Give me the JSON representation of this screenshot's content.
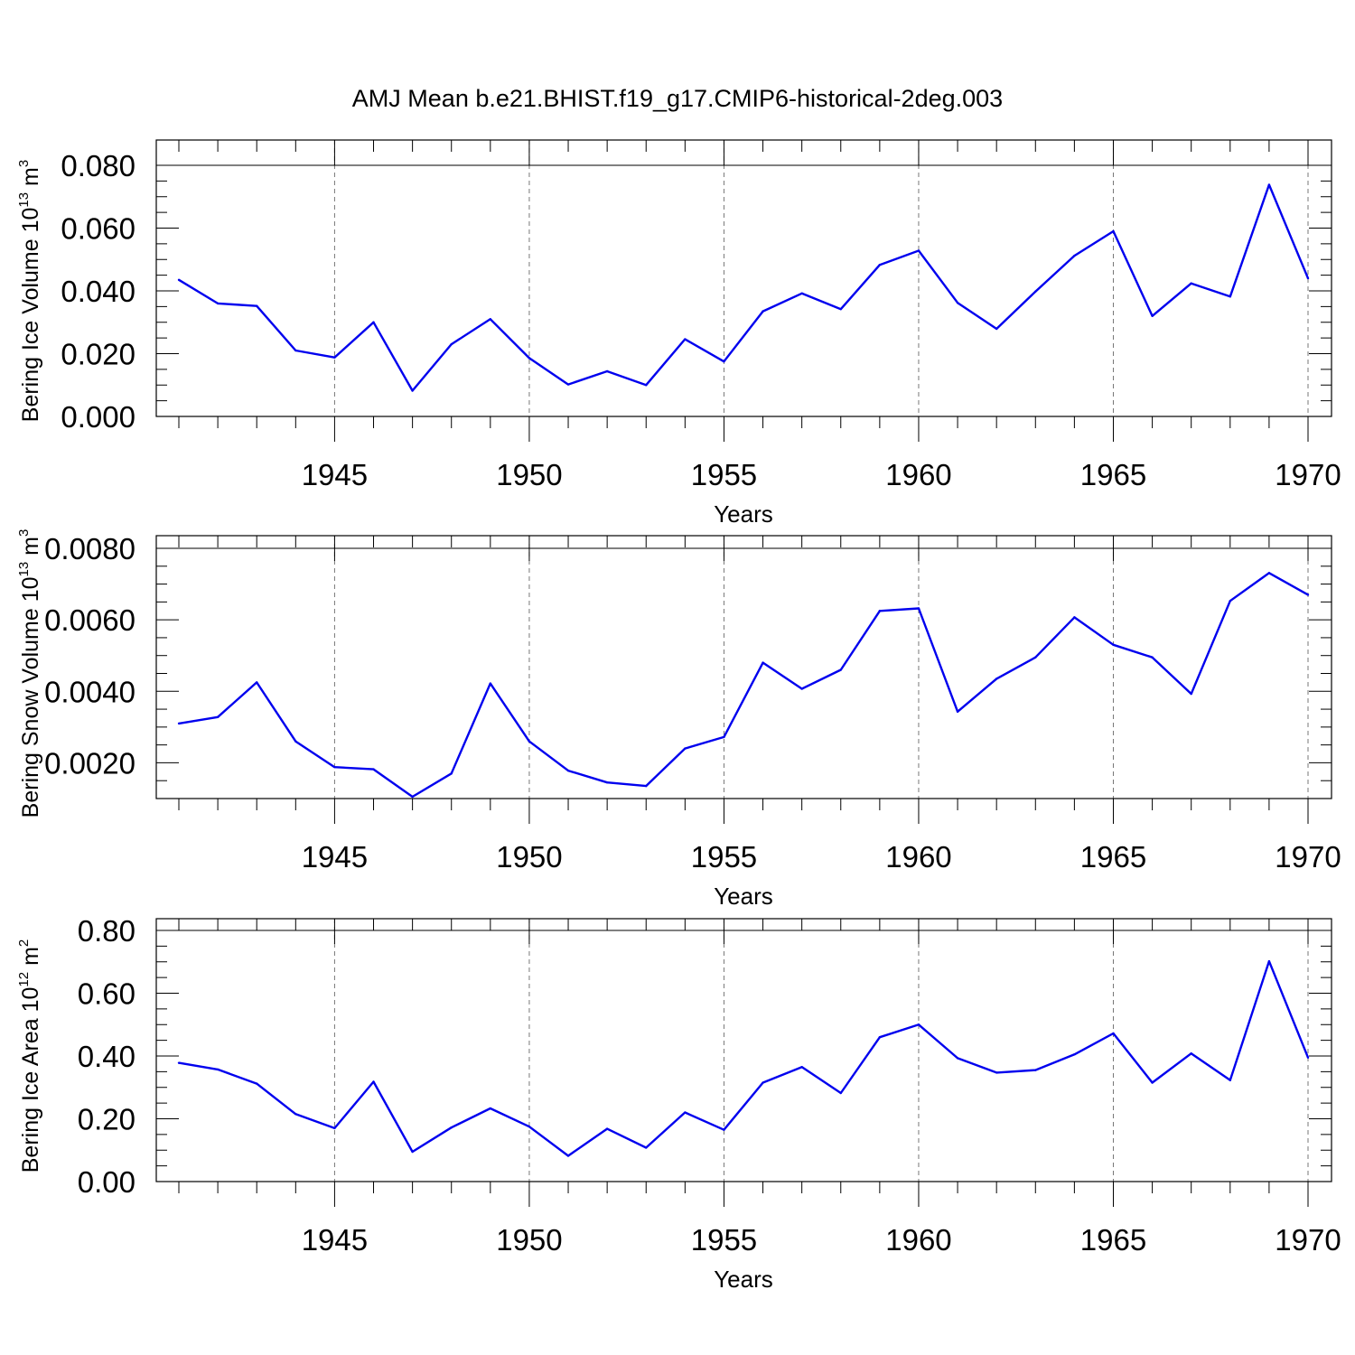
{
  "figure_title": "AMJ Mean b.e21.BHIST.f19_g17.CMIP6-historical-2deg.003",
  "colors": {
    "series": "#0000ee",
    "grid": "#777777",
    "axis": "#000000"
  },
  "chart_data": [
    {
      "type": "line",
      "ylabel": "Bering Ice Volume 10",
      "ylabel_exp": "13",
      "ylabel_unit": " m",
      "ylabel_unit_exp": "3",
      "xlabel": "Years",
      "xlim": [
        1941,
        1970
      ],
      "ylim": [
        0,
        0.08
      ],
      "yticks": [
        0,
        0.02,
        0.04,
        0.06,
        0.08
      ],
      "ytick_labels": [
        "0.000",
        "0.020",
        "0.040",
        "0.060",
        "0.080"
      ],
      "yminor_step": 0.005,
      "xticks": [
        1945,
        1950,
        1955,
        1960,
        1965,
        1970
      ],
      "xtick_labels": [
        "1945",
        "1950",
        "1955",
        "1960",
        "1965",
        "1970"
      ],
      "grid": "vertical dashed at major x ticks",
      "x": [
        1941,
        1942,
        1943,
        1944,
        1945,
        1946,
        1947,
        1948,
        1949,
        1950,
        1951,
        1952,
        1953,
        1954,
        1955,
        1956,
        1957,
        1958,
        1959,
        1960,
        1961,
        1962,
        1963,
        1964,
        1965,
        1966,
        1967,
        1968,
        1969,
        1970
      ],
      "y": [
        0.0435,
        0.036,
        0.0352,
        0.021,
        0.0188,
        0.03,
        0.0082,
        0.023,
        0.031,
        0.0186,
        0.0102,
        0.0144,
        0.01,
        0.0246,
        0.0175,
        0.0335,
        0.0392,
        0.0342,
        0.0483,
        0.0528,
        0.0362,
        0.0279,
        0.0398,
        0.0512,
        0.059,
        0.032,
        0.0424,
        0.0382,
        0.0738,
        0.044
      ]
    },
    {
      "type": "line",
      "ylabel": "Bering Snow Volume 10",
      "ylabel_exp": "13",
      "ylabel_unit": " m",
      "ylabel_unit_exp": "3",
      "xlabel": "Years",
      "xlim": [
        1941,
        1970
      ],
      "ylim": [
        0.001,
        0.008
      ],
      "yticks": [
        0.002,
        0.004,
        0.006,
        0.008
      ],
      "ytick_labels": [
        "0.0020",
        "0.0040",
        "0.0060",
        "0.0080"
      ],
      "yminor_step": 0.0005,
      "xticks": [
        1945,
        1950,
        1955,
        1960,
        1965,
        1970
      ],
      "xtick_labels": [
        "1945",
        "1950",
        "1955",
        "1960",
        "1965",
        "1970"
      ],
      "grid": "vertical dashed at major x ticks",
      "x": [
        1941,
        1942,
        1943,
        1944,
        1945,
        1946,
        1947,
        1948,
        1949,
        1950,
        1951,
        1952,
        1953,
        1954,
        1955,
        1956,
        1957,
        1958,
        1959,
        1960,
        1961,
        1962,
        1963,
        1964,
        1965,
        1966,
        1967,
        1968,
        1969,
        1970
      ],
      "y": [
        0.0031,
        0.00328,
        0.00425,
        0.0026,
        0.00188,
        0.00182,
        0.00105,
        0.0017,
        0.00422,
        0.0026,
        0.00178,
        0.00145,
        0.00135,
        0.0024,
        0.00272,
        0.0048,
        0.00407,
        0.0046,
        0.00625,
        0.00632,
        0.00343,
        0.00435,
        0.00495,
        0.00607,
        0.0053,
        0.00495,
        0.00393,
        0.00653,
        0.00731,
        0.0067
      ]
    },
    {
      "type": "line",
      "ylabel": "Bering Ice Area 10",
      "ylabel_exp": "12",
      "ylabel_unit": " m",
      "ylabel_unit_exp": "2",
      "xlabel": "Years",
      "xlim": [
        1941,
        1970
      ],
      "ylim": [
        0,
        0.8
      ],
      "yticks": [
        0,
        0.2,
        0.4,
        0.6,
        0.8
      ],
      "ytick_labels": [
        "0.00",
        "0.20",
        "0.40",
        "0.60",
        "0.80"
      ],
      "yminor_step": 0.05,
      "xticks": [
        1945,
        1950,
        1955,
        1960,
        1965,
        1970
      ],
      "xtick_labels": [
        "1945",
        "1950",
        "1955",
        "1960",
        "1965",
        "1970"
      ],
      "grid": "vertical dashed at major x ticks",
      "x": [
        1941,
        1942,
        1943,
        1944,
        1945,
        1946,
        1947,
        1948,
        1949,
        1950,
        1951,
        1952,
        1953,
        1954,
        1955,
        1956,
        1957,
        1958,
        1959,
        1960,
        1961,
        1962,
        1963,
        1964,
        1965,
        1966,
        1967,
        1968,
        1969,
        1970
      ],
      "y": [
        0.378,
        0.357,
        0.312,
        0.215,
        0.17,
        0.318,
        0.095,
        0.172,
        0.233,
        0.175,
        0.082,
        0.168,
        0.108,
        0.22,
        0.165,
        0.315,
        0.365,
        0.282,
        0.46,
        0.5,
        0.393,
        0.347,
        0.355,
        0.405,
        0.472,
        0.315,
        0.408,
        0.323,
        0.702,
        0.395
      ]
    }
  ]
}
